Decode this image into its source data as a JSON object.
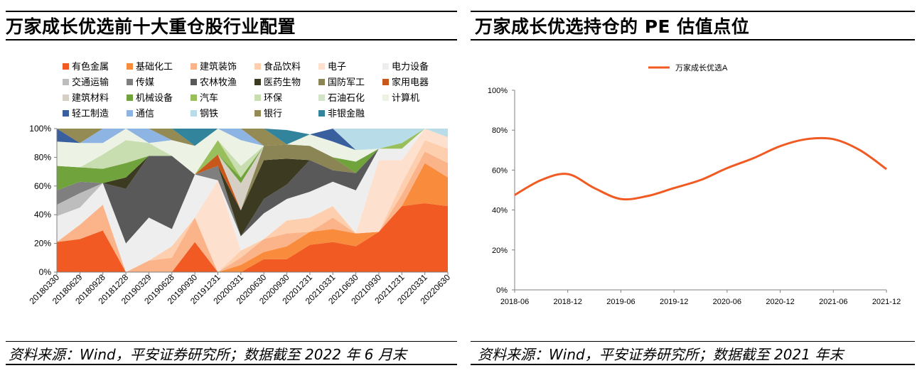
{
  "left": {
    "title": "万家成长优选前十大重仓股行业配置",
    "source": "资料来源：Wind，平安证券研究所；数据截至 2022 年 6 月末"
  },
  "right": {
    "title": "万家成长优选持仓的 PE 估值点位",
    "source": "资料来源：Wind，平安证券研究所；数据截至 2021 年末"
  },
  "chart_data": [
    {
      "type": "area",
      "stacked": true,
      "x": [
        "20180330",
        "20180629",
        "20180928",
        "20181228",
        "20190329",
        "20190628",
        "20190930",
        "20191231",
        "20200331",
        "20200630",
        "20200930",
        "20201231",
        "20210331",
        "20210630",
        "20210930",
        "20211231",
        "20220331",
        "20220630"
      ],
      "y_ticks": [
        "0%",
        "20%",
        "40%",
        "60%",
        "80%",
        "100%"
      ],
      "ylim": [
        0,
        100
      ],
      "legend_position": "top",
      "series": [
        {
          "name": "有色金属",
          "color": "#F15A22",
          "values": [
            21,
            23,
            29,
            0,
            0,
            0,
            21,
            0,
            0,
            9,
            9,
            19,
            21,
            18,
            28,
            46,
            48,
            46
          ]
        },
        {
          "name": "基础化工",
          "color": "#F98B3C",
          "values": [
            0,
            0,
            0,
            0,
            0,
            0,
            0,
            0,
            5,
            5,
            9,
            9,
            9,
            9,
            0,
            0,
            28,
            20
          ]
        },
        {
          "name": "建筑装饰",
          "color": "#FBB489",
          "values": [
            0,
            10,
            18,
            0,
            8,
            10,
            17,
            0,
            5,
            9,
            9,
            0,
            8,
            0,
            0,
            8,
            8,
            10
          ]
        },
        {
          "name": "食品饮料",
          "color": "#FDCFAE",
          "values": [
            0,
            0,
            0,
            0,
            0,
            8,
            0,
            0,
            5,
            0,
            9,
            10,
            8,
            0,
            0,
            8,
            8,
            10
          ]
        },
        {
          "name": "电子",
          "color": "#FEE0CF",
          "values": [
            0,
            0,
            0,
            0,
            0,
            0,
            0,
            64,
            0,
            0,
            0,
            0,
            0,
            0,
            50,
            16,
            8,
            8
          ]
        },
        {
          "name": "电力设备",
          "color": "#EEEEEE",
          "values": [
            18,
            12,
            15,
            20,
            30,
            12,
            30,
            0,
            10,
            18,
            15,
            18,
            17,
            30,
            8,
            8,
            0,
            0
          ]
        },
        {
          "name": "交通运输",
          "color": "#BDBDBD",
          "values": [
            8,
            10,
            0,
            0,
            0,
            0,
            0,
            0,
            0,
            0,
            0,
            0,
            0,
            0,
            0,
            0,
            0,
            0
          ]
        },
        {
          "name": "传媒",
          "color": "#7F7F7F",
          "values": [
            10,
            8,
            0,
            0,
            0,
            0,
            0,
            10,
            0,
            0,
            0,
            0,
            0,
            0,
            0,
            0,
            0,
            0
          ]
        },
        {
          "name": "农林牧渔",
          "color": "#595959",
          "values": [
            0,
            0,
            0,
            38,
            43,
            51,
            0,
            0,
            0,
            10,
            10,
            22,
            8,
            12,
            0,
            0,
            0,
            0
          ]
        },
        {
          "name": "医药生物",
          "color": "#3C3A20",
          "values": [
            0,
            0,
            0,
            8,
            0,
            0,
            0,
            0,
            18,
            27,
            18,
            0,
            0,
            0,
            0,
            0,
            0,
            0
          ]
        },
        {
          "name": "国防军工",
          "color": "#8B8455",
          "values": [
            0,
            0,
            0,
            0,
            0,
            0,
            0,
            0,
            0,
            10,
            10,
            10,
            9,
            0,
            0,
            0,
            0,
            0
          ]
        },
        {
          "name": "家用电器",
          "color": "#C8571B",
          "values": [
            0,
            0,
            0,
            0,
            0,
            0,
            0,
            8,
            0,
            0,
            0,
            0,
            0,
            0,
            0,
            0,
            0,
            0
          ]
        },
        {
          "name": "建筑材料",
          "color": "#D6D0C4",
          "values": [
            0,
            0,
            0,
            0,
            0,
            0,
            0,
            0,
            19,
            0,
            0,
            0,
            0,
            0,
            0,
            0,
            0,
            0
          ]
        },
        {
          "name": "机械设备",
          "color": "#70A33C",
          "values": [
            17,
            10,
            10,
            10,
            0,
            0,
            0,
            0,
            4,
            0,
            0,
            0,
            0,
            8,
            0,
            0,
            0,
            0
          ]
        },
        {
          "name": "汽车",
          "color": "#98BF5C",
          "values": [
            0,
            0,
            0,
            0,
            0,
            0,
            0,
            10,
            0,
            0,
            0,
            0,
            0,
            0,
            0,
            4,
            0,
            0
          ]
        },
        {
          "name": "环保",
          "color": "#C9DEB0",
          "values": [
            0,
            0,
            10,
            16,
            9,
            0,
            0,
            0,
            8,
            0,
            0,
            0,
            0,
            0,
            0,
            0,
            0,
            0
          ]
        },
        {
          "name": "石油石化",
          "color": "#D2E3C8",
          "values": [
            0,
            0,
            0,
            0,
            0,
            0,
            0,
            0,
            0,
            0,
            0,
            0,
            0,
            0,
            0,
            0,
            0,
            0
          ]
        },
        {
          "name": "计算机",
          "color": "#ECF3E4",
          "values": [
            17,
            17,
            8,
            8,
            0,
            11,
            20,
            8,
            18,
            0,
            0,
            8,
            11,
            8,
            0,
            0,
            0,
            0
          ]
        },
        {
          "name": "轻工制造",
          "color": "#3A5F9E",
          "values": [
            9,
            0,
            0,
            0,
            0,
            0,
            0,
            0,
            0,
            0,
            0,
            0,
            9,
            0,
            0,
            0,
            0,
            0
          ]
        },
        {
          "name": "通信",
          "color": "#8EB4E3",
          "values": [
            0,
            0,
            10,
            0,
            10,
            0,
            0,
            0,
            9,
            0,
            0,
            0,
            0,
            0,
            0,
            0,
            0,
            0
          ]
        },
        {
          "name": "钢铁",
          "color": "#B8DCE8",
          "values": [
            0,
            0,
            0,
            0,
            0,
            0,
            0,
            0,
            0,
            0,
            0,
            0,
            0,
            15,
            14,
            10,
            0,
            6
          ]
        },
        {
          "name": "银行",
          "color": "#948A54",
          "values": [
            0,
            10,
            0,
            0,
            0,
            8,
            0,
            0,
            0,
            12,
            0,
            0,
            0,
            0,
            0,
            0,
            0,
            0
          ]
        },
        {
          "name": "非银金融",
          "color": "#31849B",
          "values": [
            0,
            0,
            0,
            0,
            0,
            0,
            12,
            0,
            0,
            9,
            10,
            0,
            0,
            0,
            0,
            0,
            0,
            0
          ]
        }
      ]
    },
    {
      "type": "line",
      "x": [
        "2018-06",
        "2018-09",
        "2018-12",
        "2019-03",
        "2019-06",
        "2019-09",
        "2019-12",
        "2020-03",
        "2020-06",
        "2020-09",
        "2020-12",
        "2021-03",
        "2021-06",
        "2021-09",
        "2021-12"
      ],
      "x_ticks": [
        "2018-06",
        "2018-12",
        "2019-06",
        "2019-12",
        "2020-06",
        "2020-12",
        "2021-06",
        "2021-12"
      ],
      "y_ticks": [
        "0%",
        "20%",
        "40%",
        "60%",
        "80%",
        "100%"
      ],
      "ylim": [
        0,
        100
      ],
      "legend_position": "top",
      "series": [
        {
          "name": "万家成长优选A",
          "color": "#F15A22",
          "values": [
            47.5,
            55,
            58,
            51,
            45.5,
            47,
            51,
            55,
            61,
            66,
            72,
            75.5,
            75.5,
            70,
            60.5
          ]
        }
      ]
    }
  ]
}
